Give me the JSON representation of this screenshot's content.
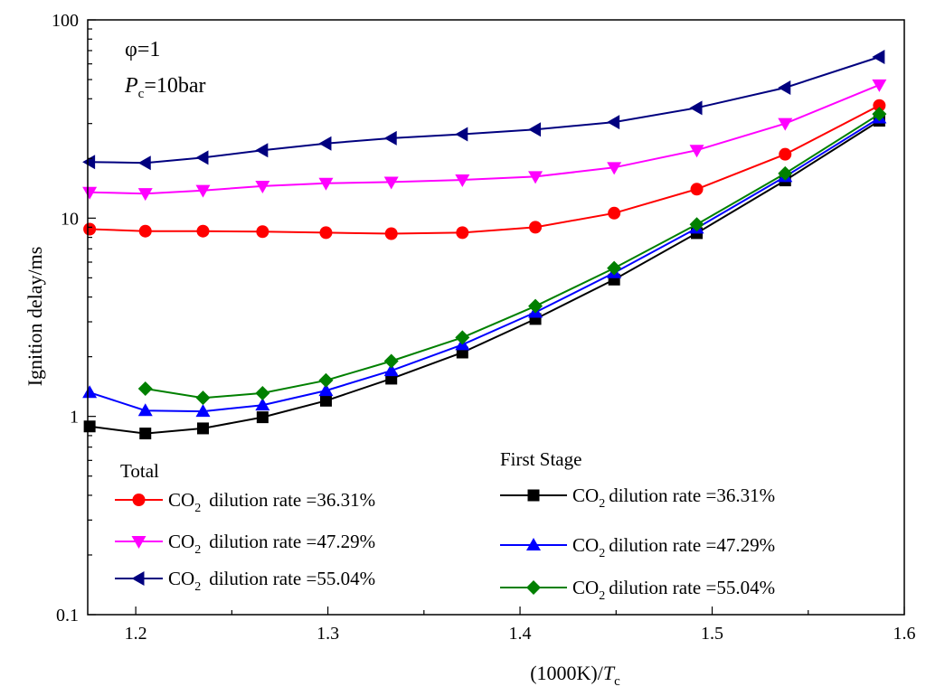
{
  "chart_data": {
    "type": "line",
    "yscale": "log",
    "xlabel": "(1000K)/Tc",
    "xlabel_parts": {
      "prefix": "(1000K)/",
      "italic": "T",
      "sub": "c"
    },
    "ylabel": "Ignition delay/ms",
    "xlim": [
      1.175,
      1.6
    ],
    "ylim": [
      0.1,
      100
    ],
    "xticks": [
      "1.2",
      "1.3",
      "1.4",
      "1.5",
      "1.6"
    ],
    "yticks": [
      "0.1",
      "1",
      "10",
      "100"
    ],
    "annotations": {
      "phi": "φ=1",
      "pressure": {
        "italic": "P",
        "sub": "c",
        "rest": "=10bar"
      }
    },
    "legend": {
      "total_title": "Total",
      "first_title": "First Stage",
      "co2_main": "CO",
      "co2_sub": "2"
    },
    "x": [
      1.176,
      1.205,
      1.235,
      1.266,
      1.299,
      1.333,
      1.37,
      1.408,
      1.449,
      1.492,
      1.538,
      1.587
    ],
    "series": [
      {
        "name": "Total 36.31%",
        "group": "total",
        "label": "dilution rate =36.31%",
        "color": "#ff0000",
        "marker": "circle",
        "values": [
          8.8,
          8.6,
          8.6,
          8.55,
          8.45,
          8.35,
          8.45,
          9.0,
          10.6,
          14.0,
          21.0,
          37.0
        ]
      },
      {
        "name": "Total 47.29%",
        "group": "total",
        "label": "dilution rate =47.29%",
        "color": "#ff00ff",
        "marker": "triangle-down",
        "values": [
          13.5,
          13.3,
          13.8,
          14.5,
          15.0,
          15.2,
          15.6,
          16.2,
          18.0,
          22.0,
          30.0,
          47.0
        ]
      },
      {
        "name": "Total 55.04%",
        "group": "total",
        "label": "dilution rate =55.04%",
        "color": "#00007f",
        "marker": "triangle-left",
        "values": [
          19.2,
          19.0,
          20.2,
          22.0,
          23.8,
          25.3,
          26.5,
          28.0,
          30.5,
          36.0,
          45.5,
          65.0
        ]
      },
      {
        "name": "First 36.31%",
        "group": "first",
        "label": "dilution rate =36.31%",
        "color": "#000000",
        "marker": "square",
        "values": [
          0.89,
          0.82,
          0.87,
          0.99,
          1.2,
          1.55,
          2.1,
          3.1,
          4.9,
          8.4,
          15.5,
          31.0
        ]
      },
      {
        "name": "First 47.29%",
        "group": "first",
        "label": "dilution rate =47.29%",
        "color": "#0000ff",
        "marker": "triangle-up",
        "values": [
          1.32,
          1.07,
          1.06,
          1.14,
          1.35,
          1.7,
          2.3,
          3.35,
          5.3,
          8.9,
          16.2,
          32.0
        ]
      },
      {
        "name": "First 55.04%",
        "group": "first",
        "label": "dilution rate =55.04%",
        "color": "#008000",
        "marker": "diamond",
        "values": [
          null,
          1.38,
          1.24,
          1.31,
          1.52,
          1.9,
          2.5,
          3.6,
          5.6,
          9.3,
          16.8,
          33.5
        ]
      }
    ]
  }
}
